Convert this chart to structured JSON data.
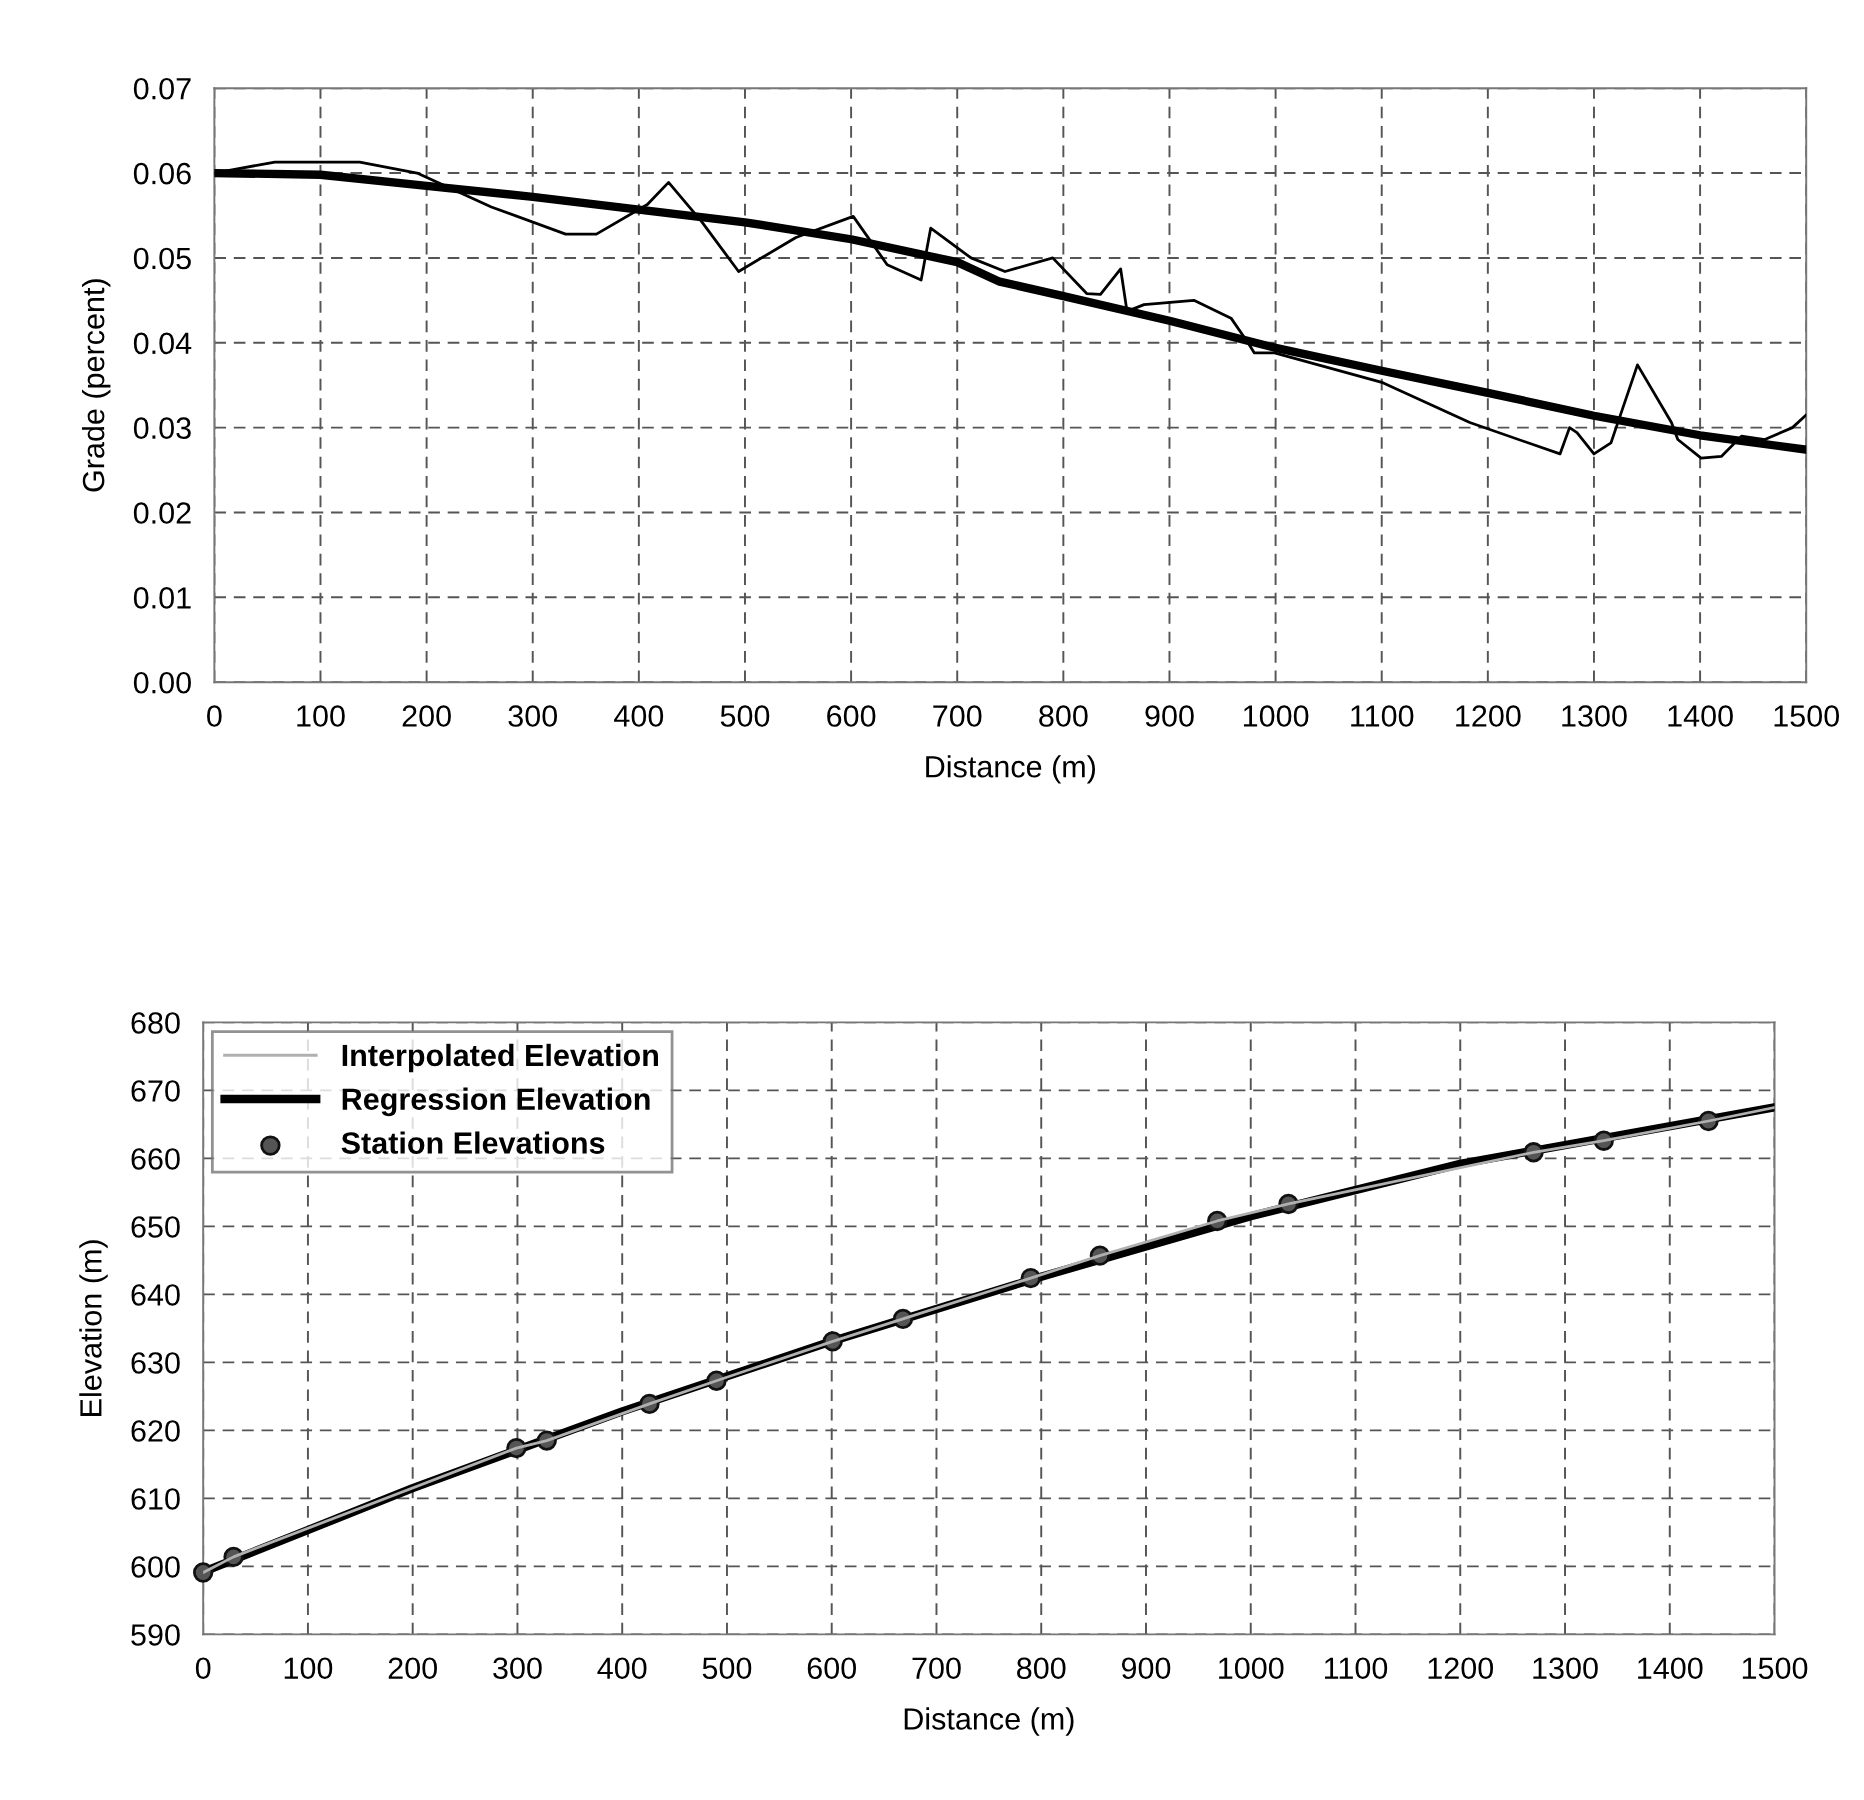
{
  "chart_data": [
    {
      "type": "line",
      "xlabel": "Distance (m)",
      "ylabel": "Grade (percent)",
      "xlim": [
        0,
        1500
      ],
      "ylim": [
        0,
        0.07
      ],
      "xticks": [
        0,
        100,
        200,
        300,
        400,
        500,
        600,
        700,
        800,
        900,
        1000,
        1100,
        1200,
        1300,
        1400,
        1500
      ],
      "yticks": [
        {
          "value": 0,
          "label": "0.00"
        },
        {
          "value": 0.01,
          "label": "0.01"
        },
        {
          "value": 0.02,
          "label": "0.02"
        },
        {
          "value": 0.03,
          "label": "0.03"
        },
        {
          "value": 0.04,
          "label": "0.04"
        },
        {
          "value": 0.05,
          "label": "0.05"
        },
        {
          "value": 0.06,
          "label": "0.06"
        },
        {
          "value": 0.07,
          "label": "0.07"
        }
      ],
      "grid": true,
      "marker": "none",
      "line_style": "solid",
      "series": [
        {
          "type": "line",
          "color": "#000000",
          "x": [
            0,
            57,
            137,
            191,
            261,
            331,
            360,
            408,
            428,
            459,
            494,
            548,
            602,
            634,
            666,
            675,
            713,
            745,
            790,
            822,
            835,
            854,
            860,
            876,
            923,
            958,
            974,
            980,
            999,
            1101,
            1183,
            1268,
            1277,
            1284,
            1300,
            1316,
            1341,
            1373,
            1379,
            1401,
            1420,
            1439,
            1461,
            1487,
            1500
          ],
          "values": [
            0.06,
            0.0613,
            0.0613,
            0.06,
            0.056,
            0.0528,
            0.0528,
            0.0563,
            0.0589,
            0.0543,
            0.0484,
            0.0524,
            0.0549,
            0.0492,
            0.0474,
            0.0535,
            0.05,
            0.0484,
            0.05,
            0.0458,
            0.0457,
            0.0487,
            0.0437,
            0.0445,
            0.045,
            0.0429,
            0.04,
            0.0388,
            0.0388,
            0.0353,
            0.0306,
            0.0269,
            0.03,
            0.0294,
            0.0269,
            0.0282,
            0.0374,
            0.0306,
            0.0286,
            0.0264,
            0.0266,
            0.029,
            0.0286,
            0.03,
            0.0315
          ]
        },
        {
          "type": "line",
          "color": "#000000",
          "x": [
            0,
            100,
            200,
            300,
            400,
            500,
            600,
            700,
            740,
            800,
            900,
            1000,
            1100,
            1200,
            1300,
            1400,
            1500
          ],
          "values": [
            0.06,
            0.0598,
            0.0585,
            0.0572,
            0.0557,
            0.0542,
            0.0522,
            0.0495,
            0.0472,
            0.0455,
            0.0426,
            0.0394,
            0.0367,
            0.0341,
            0.0314,
            0.0291,
            0.0274
          ]
        }
      ]
    },
    {
      "type": "line",
      "xlabel": "Distance (m)",
      "ylabel": "Elevation (m)",
      "xlim": [
        0,
        1500
      ],
      "ylim": [
        590,
        680
      ],
      "xticks": [
        0,
        100,
        200,
        300,
        400,
        500,
        600,
        700,
        800,
        900,
        1000,
        1100,
        1200,
        1300,
        1400,
        1500
      ],
      "yticks": [
        590,
        600,
        610,
        620,
        630,
        640,
        650,
        660,
        670,
        680
      ],
      "grid": true,
      "legend": "top left",
      "line_style": "solid",
      "series": [
        {
          "type": "line",
          "name": "Interpolated Elevation",
          "color": "#b0b0b0",
          "x": [
            0,
            29,
            299,
            328,
            426,
            490,
            601,
            668,
            790,
            856,
            968,
            1036,
            1270,
            1337,
            1437,
            1500
          ],
          "values": [
            599.1,
            601.4,
            617.4,
            618.5,
            623.9,
            627.3,
            633.1,
            636.4,
            642.4,
            645.7,
            650.8,
            653.3,
            660.9,
            662.6,
            665.5,
            667.5
          ],
          "marker": "none"
        },
        {
          "type": "line",
          "name": "Regression Elevation",
          "color": "#000000",
          "x": [
            0,
            200,
            400,
            600,
            800,
            1000,
            1200,
            1500
          ],
          "values": [
            599.2,
            611.5,
            622.8,
            633.1,
            642.6,
            651.5,
            659.2,
            667.5
          ],
          "marker": "none"
        },
        {
          "type": "scatter",
          "name": "Station Elevations",
          "color": "#555555",
          "x": [
            0,
            29,
            299,
            328,
            426,
            490,
            601,
            668,
            790,
            856,
            968,
            1036,
            1270,
            1337,
            1437
          ],
          "values": [
            599.1,
            601.4,
            617.4,
            618.5,
            623.9,
            627.3,
            633.1,
            636.4,
            642.4,
            645.7,
            650.8,
            653.3,
            660.9,
            662.6,
            665.5
          ],
          "marker": "circle"
        }
      ]
    }
  ]
}
